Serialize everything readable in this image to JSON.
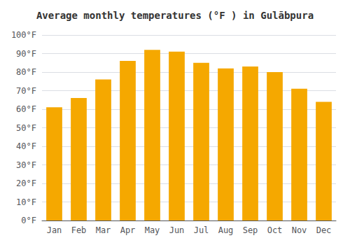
{
  "chart_data": {
    "type": "bar",
    "title": "Average monthly temperatures (°F ) in Gulābpura",
    "categories": [
      "Jan",
      "Feb",
      "Mar",
      "Apr",
      "May",
      "Jun",
      "Jul",
      "Aug",
      "Sep",
      "Oct",
      "Nov",
      "Dec"
    ],
    "values": [
      61,
      66,
      76,
      86,
      92,
      91,
      85,
      82,
      83,
      80,
      71,
      64
    ],
    "color": "#F5A800",
    "ylim": [
      0,
      100
    ],
    "yticks": [
      {
        "value": 0,
        "label": "0°F"
      },
      {
        "value": 10,
        "label": "10°F"
      },
      {
        "value": 20,
        "label": "20°F"
      },
      {
        "value": 30,
        "label": "30°F"
      },
      {
        "value": 40,
        "label": "40°F"
      },
      {
        "value": 50,
        "label": "50°F"
      },
      {
        "value": 60,
        "label": "60°F"
      },
      {
        "value": 70,
        "label": "70°F"
      },
      {
        "value": 80,
        "label": "80°F"
      },
      {
        "value": 90,
        "label": "90°F"
      },
      {
        "value": 100,
        "label": "100°F"
      }
    ],
    "grid": true
  }
}
